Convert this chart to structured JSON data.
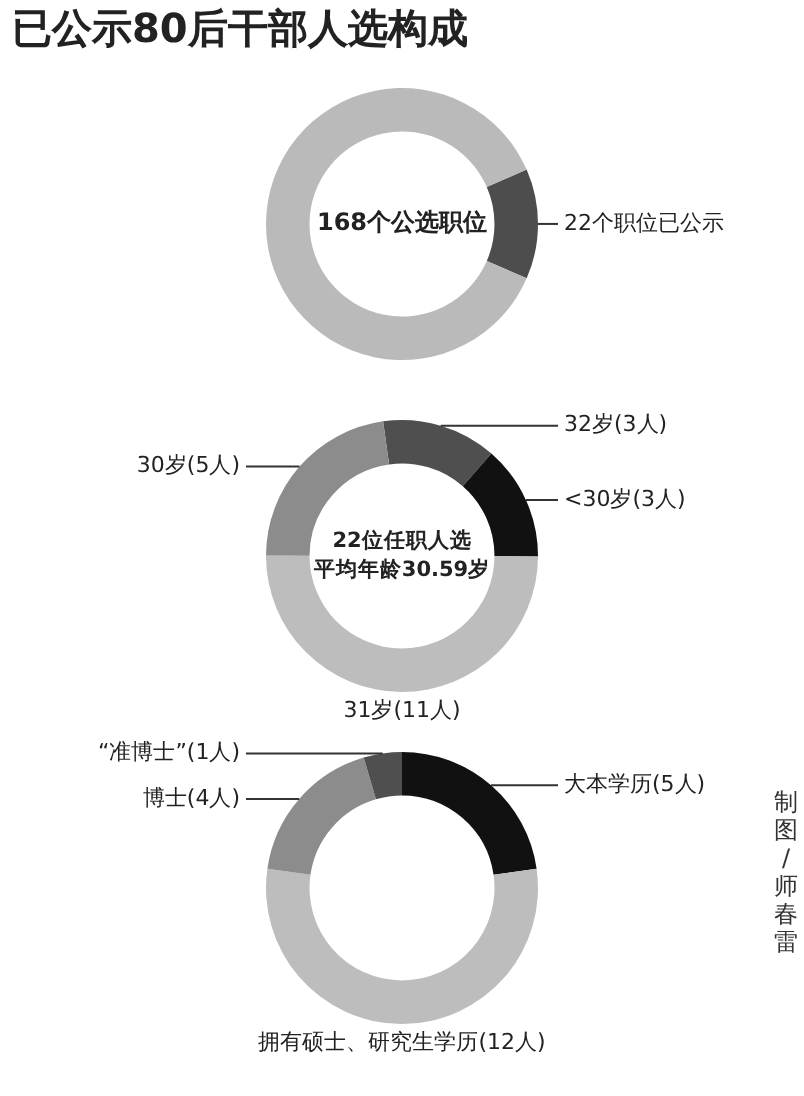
{
  "chart_data": [
    {
      "type": "donut",
      "title": "已公示80后干部人选构成",
      "categories": [
        "22个职位已公示",
        null
      ],
      "values": [
        22,
        146
      ],
      "colors": [
        "#4d4d4d",
        "#bababa"
      ],
      "annotations": [
        "168个公选职位"
      ]
    },
    {
      "type": "donut",
      "categories": [
        "32岁(3人)",
        "<30岁(3人)",
        "31岁(11人)",
        "30岁(5人)"
      ],
      "values": [
        3,
        3,
        11,
        5
      ],
      "colors": [
        "#4f4f4f",
        "#111111",
        "#bdbdbd",
        "#8c8c8c"
      ],
      "annotations": [
        "22位任职人选",
        "平均年龄30.59岁"
      ]
    },
    {
      "type": "donut",
      "categories": [
        "大本学历(5人)",
        "拥有硕士、研究生学历(12人)",
        "博士(4人)",
        "“准博士”(1人)"
      ],
      "values": [
        5,
        12,
        4,
        1
      ],
      "colors": [
        "#111111",
        "#bdbdbd",
        "#8c8c8c",
        "#4f4f4f"
      ],
      "annotations": [
        "制图/师春雷"
      ]
    }
  ]
}
